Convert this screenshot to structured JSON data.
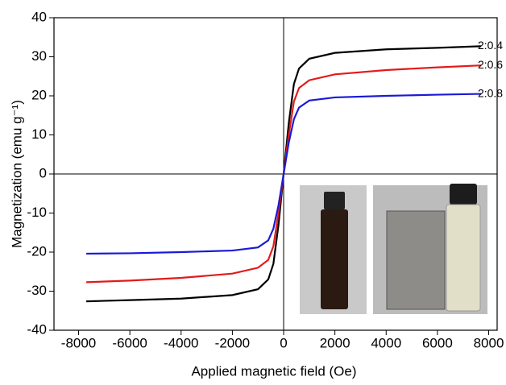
{
  "chart_data": {
    "type": "line",
    "x_label": "Applied magnetic field (Oe)",
    "y_label": "Magnetization (emu g⁻¹)",
    "x": [
      -7700,
      -6000,
      -4000,
      -2000,
      -1000,
      -600,
      -400,
      -200,
      0,
      200,
      400,
      600,
      1000,
      2000,
      4000,
      6000,
      7700
    ],
    "series": [
      {
        "name": "2:0.4",
        "color": "#000000",
        "values": [
          -32.6,
          -32.3,
          -31.9,
          -31.0,
          -29.5,
          -27,
          -23,
          -13,
          0,
          13,
          23,
          27,
          29.5,
          31.0,
          31.9,
          32.3,
          32.7
        ]
      },
      {
        "name": "2:0.6",
        "color": "#e41a1a",
        "values": [
          -27.7,
          -27.3,
          -26.6,
          -25.5,
          -24,
          -22,
          -18.5,
          -10,
          0,
          10,
          18.5,
          22,
          24,
          25.5,
          26.6,
          27.3,
          27.8
        ]
      },
      {
        "name": "2:0.8",
        "color": "#1a1ad6",
        "values": [
          -20.4,
          -20.3,
          -20.0,
          -19.6,
          -18.8,
          -17,
          -14,
          -8,
          0,
          8,
          14,
          17,
          18.8,
          19.6,
          20.0,
          20.3,
          20.5
        ]
      }
    ],
    "xlim": [
      -8960,
      8330
    ],
    "ylim": [
      -40,
      40
    ],
    "xticks": [
      -8000,
      -6000,
      -4000,
      -2000,
      0,
      2000,
      4000,
      6000,
      8000
    ],
    "yticks": [
      -40,
      -30,
      -20,
      -10,
      0,
      10,
      20,
      30,
      40
    ]
  }
}
